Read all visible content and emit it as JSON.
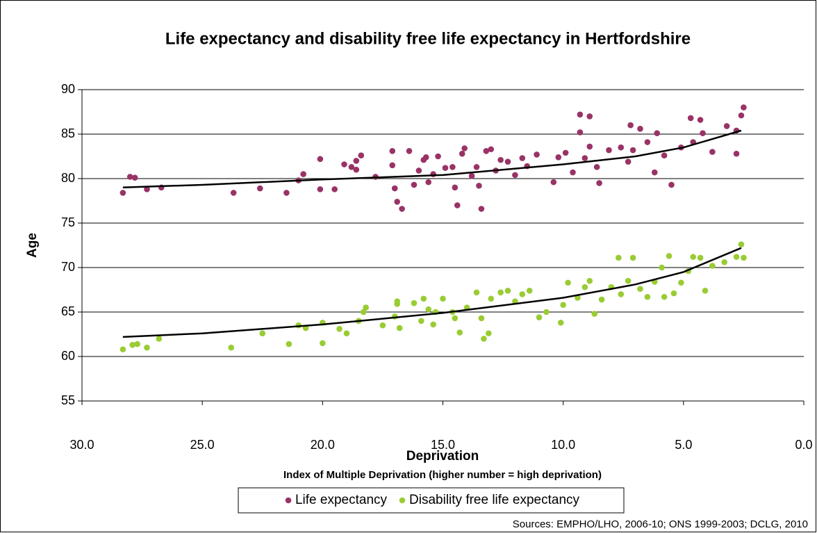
{
  "chart_data": {
    "type": "scatter",
    "title": "Life expectancy and disability free life expectancy in Hertfordshire",
    "x_label": "Deprivation",
    "x_sublabel": "Index of Multiple Deprivation (higher number = high deprivation)",
    "y_label": "Age",
    "source": "Sources: EMPHO/LHO, 2006-10; ONS 1999-2003; DCLG, 2010",
    "xlim": [
      30,
      0
    ],
    "xticks": [
      {
        "value": 30,
        "label": "30.0"
      },
      {
        "value": 25,
        "label": "25.0"
      },
      {
        "value": 20,
        "label": "20.0"
      },
      {
        "value": 15,
        "label": "15.0"
      },
      {
        "value": 10,
        "label": "10.0"
      },
      {
        "value": 5,
        "label": "5.0"
      },
      {
        "value": 0,
        "label": "0.0"
      }
    ],
    "ylim": [
      55,
      90
    ],
    "yticks": [
      55,
      60,
      65,
      70,
      75,
      80,
      85,
      90
    ],
    "grid": true,
    "legend": "bottom",
    "series": [
      {
        "name": "Life expectancy",
        "color": "#993366",
        "x": [
          28.3,
          28.0,
          27.8,
          27.3,
          26.7,
          23.7,
          22.6,
          21.5,
          21.0,
          20.8,
          20.1,
          20.1,
          19.5,
          19.1,
          18.8,
          18.6,
          18.6,
          18.4,
          17.8,
          17.1,
          17.1,
          17.0,
          16.9,
          16.7,
          16.4,
          16.2,
          16.0,
          15.8,
          15.7,
          15.6,
          15.4,
          15.2,
          14.9,
          14.6,
          14.5,
          14.4,
          14.2,
          14.1,
          13.8,
          13.6,
          13.5,
          13.4,
          13.2,
          13.0,
          12.8,
          12.6,
          12.3,
          12.0,
          11.7,
          11.5,
          11.1,
          10.4,
          10.2,
          9.9,
          9.6,
          9.3,
          9.1,
          8.9,
          8.6,
          8.5,
          8.1,
          7.6,
          7.3,
          7.1,
          6.8,
          6.5,
          6.2,
          6.1,
          5.8,
          5.5,
          5.1,
          4.6,
          4.2,
          3.8,
          3.2,
          2.8,
          2.5,
          9.3,
          8.9,
          2.8,
          2.6,
          4.7,
          4.3,
          7.2
        ],
        "values": [
          78.4,
          80.2,
          80.1,
          78.8,
          79.0,
          78.4,
          78.9,
          78.4,
          79.8,
          80.5,
          82.2,
          78.8,
          78.8,
          81.6,
          81.3,
          82.0,
          81.0,
          82.6,
          80.2,
          83.1,
          81.5,
          78.9,
          77.4,
          76.6,
          83.1,
          79.3,
          80.9,
          82.1,
          82.4,
          79.6,
          80.5,
          82.5,
          81.2,
          81.3,
          79.0,
          77.0,
          82.8,
          83.4,
          80.3,
          81.3,
          79.2,
          76.6,
          83.1,
          83.3,
          80.9,
          82.1,
          81.9,
          80.4,
          82.3,
          81.4,
          82.7,
          79.6,
          82.4,
          82.9,
          80.7,
          85.2,
          82.3,
          83.6,
          81.3,
          79.5,
          83.2,
          83.5,
          81.9,
          83.2,
          85.6,
          84.1,
          80.7,
          85.1,
          82.6,
          79.3,
          83.5,
          84.1,
          85.1,
          83.0,
          85.9,
          85.4,
          88.0,
          87.2,
          87.0,
          82.8,
          87.1,
          86.8,
          86.6,
          86.0
        ],
        "trend": {
          "x": [
            28.3,
            25,
            20,
            15,
            10,
            7,
            5,
            2.6
          ],
          "values": [
            79.0,
            79.3,
            79.9,
            80.4,
            81.6,
            82.5,
            83.5,
            85.4
          ]
        }
      },
      {
        "name": "Disability free life expectancy",
        "color": "#99cc33",
        "x": [
          28.3,
          27.9,
          27.7,
          27.3,
          26.8,
          23.8,
          22.5,
          21.4,
          21.0,
          20.7,
          20.0,
          20.0,
          19.3,
          19.0,
          18.5,
          18.3,
          18.2,
          17.5,
          17.0,
          16.9,
          16.9,
          16.8,
          16.2,
          15.9,
          15.8,
          15.6,
          15.4,
          15.3,
          15.0,
          14.6,
          14.5,
          14.3,
          14.0,
          13.6,
          13.4,
          13.3,
          13.1,
          13.0,
          12.6,
          12.3,
          12.0,
          11.7,
          11.4,
          11.0,
          10.7,
          10.1,
          10.0,
          9.8,
          9.4,
          9.1,
          8.9,
          8.7,
          8.4,
          8.0,
          7.7,
          7.6,
          7.3,
          7.1,
          6.8,
          6.5,
          6.2,
          5.9,
          5.8,
          5.6,
          5.4,
          5.1,
          4.8,
          4.6,
          4.3,
          4.1,
          3.8,
          3.3,
          2.8,
          2.6,
          2.5
        ],
        "values": [
          60.8,
          61.3,
          61.4,
          61.0,
          62.0,
          61.0,
          62.6,
          61.4,
          63.5,
          63.2,
          61.5,
          63.8,
          63.1,
          62.6,
          64.0,
          65.0,
          65.5,
          63.5,
          64.5,
          65.9,
          66.2,
          63.2,
          66.0,
          64.0,
          66.5,
          65.3,
          63.6,
          65.0,
          66.5,
          65.0,
          64.3,
          62.7,
          65.5,
          67.2,
          64.3,
          62.0,
          62.6,
          66.5,
          67.2,
          67.4,
          66.2,
          67.0,
          67.4,
          64.4,
          65.0,
          63.8,
          65.8,
          68.3,
          66.6,
          67.8,
          68.5,
          64.8,
          66.4,
          67.8,
          71.1,
          67.0,
          68.5,
          71.1,
          67.6,
          66.7,
          68.4,
          70.0,
          66.7,
          71.3,
          67.1,
          68.3,
          69.6,
          71.2,
          71.1,
          67.4,
          70.2,
          70.6,
          71.2,
          72.6,
          71.1
        ],
        "trend": {
          "x": [
            28.3,
            25,
            20,
            15,
            10,
            7,
            5,
            2.6
          ],
          "values": [
            62.2,
            62.6,
            63.6,
            64.9,
            66.6,
            68.1,
            69.5,
            72.2
          ]
        }
      }
    ]
  }
}
